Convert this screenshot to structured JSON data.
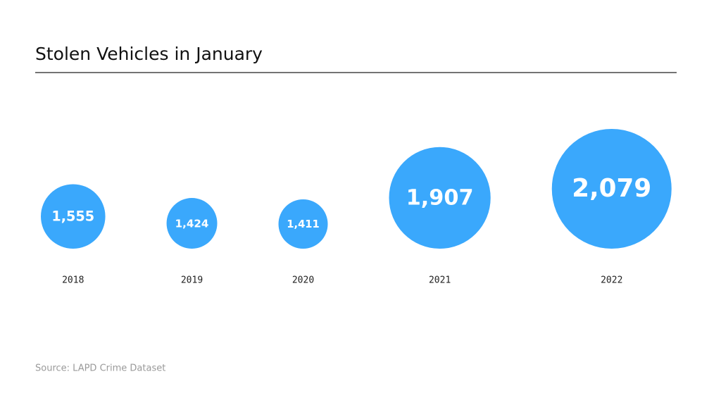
{
  "chart_data": {
    "type": "bubble",
    "title": "Stolen Vehicles in January",
    "source": "Source: LAPD Crime Dataset",
    "categories": [
      "2018",
      "2019",
      "2020",
      "2021",
      "2022"
    ],
    "values": [
      1555,
      1424,
      1411,
      1907,
      2079
    ],
    "value_labels": [
      "1,555",
      "1,424",
      "1,411",
      "1,907",
      "2,079"
    ],
    "color": "#3aa8fc"
  }
}
